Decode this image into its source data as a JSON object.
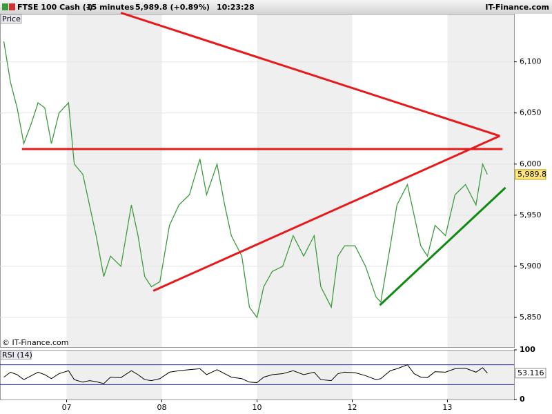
{
  "header": {
    "symbol": "FTSE 100 Cash (-)",
    "interval": "15 minutes",
    "price": "5,989.8 (+0.89%)",
    "time": "10:23:28",
    "site": "IT-Finance.com"
  },
  "chart_data": [
    {
      "type": "line",
      "title": "Price",
      "copyright": "© IT-Finance.com",
      "x": [
        0.34,
        0.41,
        0.48,
        0.55,
        0.63,
        0.7,
        0.77,
        0.84,
        0.92,
        1.02,
        1.08,
        1.17,
        1.24,
        1.31,
        1.39,
        1.46,
        1.57,
        1.68,
        1.75,
        1.82,
        1.89,
        1.98,
        2.08,
        2.18,
        2.29,
        2.4,
        2.47,
        2.58,
        2.66,
        2.73,
        2.84,
        2.92,
        3.0,
        3.07,
        3.16,
        3.27,
        3.38,
        3.49,
        3.6,
        3.67,
        3.78,
        3.85,
        3.92,
        4.03,
        4.14,
        4.25,
        4.3,
        4.4,
        4.47,
        4.58,
        4.65,
        4.72,
        4.79,
        4.87,
        4.98,
        5.08,
        5.19,
        5.3,
        5.37,
        5.42
      ],
      "series": [
        {
          "color": "#3d9a3d",
          "values": [
            6120,
            6080,
            6055,
            6020,
            6040,
            6060,
            6055,
            6020,
            6050,
            6060,
            6000,
            5990,
            5960,
            5930,
            5890,
            5910,
            5900,
            5960,
            5930,
            5890,
            5880,
            5885,
            5940,
            5960,
            5970,
            6005,
            5970,
            6000,
            5960,
            5930,
            5910,
            5860,
            5850,
            5880,
            5895,
            5900,
            5930,
            5910,
            5930,
            5880,
            5860,
            5910,
            5920,
            5920,
            5900,
            5870,
            5865,
            5920,
            5960,
            5980,
            5950,
            5920,
            5910,
            5940,
            5930,
            5970,
            5980,
            5960,
            6000,
            5989.8
          ]
        }
      ],
      "last": {
        "value": 5989.8,
        "label": "5,989.8"
      },
      "xlim": [
        0.3,
        5.7
      ],
      "ylim": [
        5821,
        6147
      ],
      "yticks": [
        {
          "value": 5850,
          "label": "5,850"
        },
        {
          "value": 5900,
          "label": "5,900"
        },
        {
          "value": 5950,
          "label": "5,950"
        },
        {
          "value": 6000,
          "label": "6,000"
        },
        {
          "value": 6050,
          "label": "6,050"
        },
        {
          "value": 6100,
          "label": "6,100"
        }
      ],
      "trendlines": [
        {
          "color": "#e8191b",
          "x": [
            1.57,
            5.55
          ],
          "y": [
            6148,
            6027.5
          ]
        },
        {
          "color": "#e8191b",
          "x": [
            0.53,
            5.58
          ],
          "y": [
            6014.7,
            6014.7
          ]
        },
        {
          "color": "#e8191b",
          "x": [
            1.91,
            5.55
          ],
          "y": [
            5876,
            6027.5
          ]
        },
        {
          "color": "#108a10",
          "x": [
            4.29,
            5.61
          ],
          "y": [
            5862,
            5977
          ]
        }
      ]
    },
    {
      "type": "line",
      "title": "RSI (14)",
      "x": [
        0.34,
        0.41,
        0.48,
        0.55,
        0.63,
        0.7,
        0.77,
        0.84,
        0.92,
        1.02,
        1.08,
        1.17,
        1.24,
        1.31,
        1.39,
        1.46,
        1.57,
        1.68,
        1.75,
        1.82,
        1.89,
        1.98,
        2.08,
        2.18,
        2.29,
        2.4,
        2.47,
        2.58,
        2.66,
        2.73,
        2.84,
        2.92,
        3.0,
        3.07,
        3.16,
        3.27,
        3.38,
        3.49,
        3.6,
        3.67,
        3.78,
        3.85,
        3.92,
        4.03,
        4.14,
        4.25,
        4.3,
        4.4,
        4.47,
        4.58,
        4.65,
        4.72,
        4.79,
        4.87,
        4.98,
        5.08,
        5.19,
        5.3,
        5.37,
        5.42
      ],
      "series": [
        {
          "color": "#000000",
          "values": [
            45,
            55,
            50,
            40,
            48,
            55,
            50,
            42,
            52,
            58,
            40,
            35,
            38,
            36,
            32,
            45,
            44,
            58,
            50,
            40,
            38,
            42,
            55,
            58,
            60,
            62,
            50,
            60,
            52,
            45,
            42,
            35,
            34,
            45,
            50,
            52,
            58,
            50,
            55,
            40,
            38,
            52,
            55,
            54,
            48,
            40,
            42,
            58,
            62,
            70,
            52,
            45,
            44,
            56,
            55,
            62,
            63,
            55,
            64,
            53.116
          ]
        }
      ],
      "levels": [
        30,
        70
      ],
      "level_color": "#2a2aa0",
      "xlim": [
        0.3,
        5.7
      ],
      "ylim": [
        0,
        100
      ],
      "yticks": [
        0,
        100
      ],
      "xticks": [
        {
          "value": 1,
          "label": "07"
        },
        {
          "value": 2,
          "label": "08"
        },
        {
          "value": 3,
          "label": "10"
        },
        {
          "value": 4,
          "label": "12"
        },
        {
          "value": 5,
          "label": "13"
        }
      ]
    }
  ]
}
